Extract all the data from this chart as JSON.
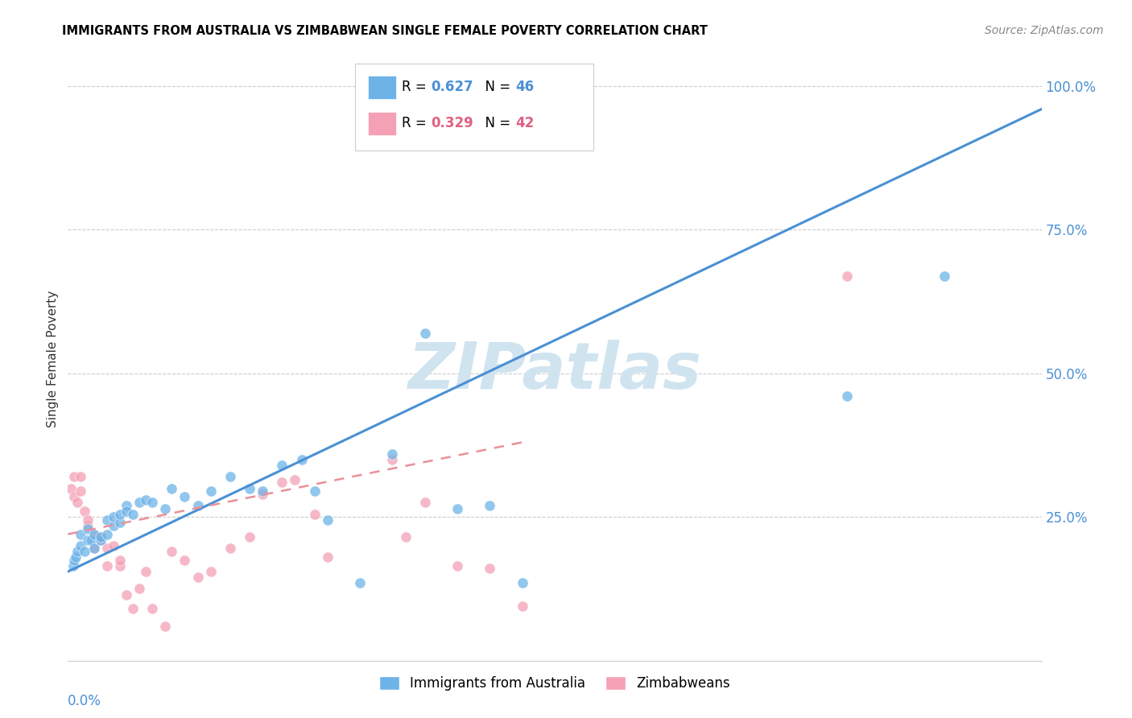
{
  "title": "IMMIGRANTS FROM AUSTRALIA VS ZIMBABWEAN SINGLE FEMALE POVERTY CORRELATION CHART",
  "source": "Source: ZipAtlas.com",
  "ylabel": "Single Female Poverty",
  "ytick_labels": [
    "100.0%",
    "75.0%",
    "50.0%",
    "25.0%"
  ],
  "ytick_vals": [
    1.0,
    0.75,
    0.5,
    0.25
  ],
  "legend_1_r": "0.627",
  "legend_1_n": "46",
  "legend_2_r": "0.329",
  "legend_2_n": "42",
  "blue_color": "#6db3e8",
  "pink_color": "#f4a0b5",
  "blue_line_color": "#4a90d4",
  "pink_line_color": "#e8909a",
  "watermark": "ZIPatlas",
  "watermark_color": "#d0e4f0",
  "title_fontsize": 10.5,
  "source_fontsize": 10,
  "tick_color": "#4a90d4",
  "ylabel_color": "#333333",
  "xmin": 0.0,
  "xmax": 0.15,
  "ymin": 0.0,
  "ymax": 1.05,
  "blue_x": [
    0.0008,
    0.001,
    0.0012,
    0.0015,
    0.002,
    0.002,
    0.0025,
    0.003,
    0.003,
    0.0035,
    0.004,
    0.004,
    0.005,
    0.005,
    0.006,
    0.006,
    0.007,
    0.007,
    0.008,
    0.008,
    0.009,
    0.009,
    0.01,
    0.011,
    0.012,
    0.013,
    0.015,
    0.016,
    0.018,
    0.02,
    0.022,
    0.025,
    0.028,
    0.03,
    0.033,
    0.036,
    0.038,
    0.04,
    0.045,
    0.05,
    0.055,
    0.06,
    0.065,
    0.07,
    0.12,
    0.135
  ],
  "blue_y": [
    0.165,
    0.175,
    0.18,
    0.19,
    0.2,
    0.22,
    0.19,
    0.21,
    0.23,
    0.21,
    0.195,
    0.22,
    0.21,
    0.215,
    0.22,
    0.245,
    0.235,
    0.25,
    0.24,
    0.255,
    0.27,
    0.26,
    0.255,
    0.275,
    0.28,
    0.275,
    0.265,
    0.3,
    0.285,
    0.27,
    0.295,
    0.32,
    0.3,
    0.295,
    0.34,
    0.35,
    0.295,
    0.245,
    0.135,
    0.36,
    0.57,
    0.265,
    0.27,
    0.135,
    0.46,
    0.67
  ],
  "pink_x": [
    0.0005,
    0.001,
    0.001,
    0.0015,
    0.002,
    0.002,
    0.0025,
    0.003,
    0.003,
    0.004,
    0.004,
    0.005,
    0.005,
    0.006,
    0.006,
    0.007,
    0.008,
    0.008,
    0.009,
    0.01,
    0.011,
    0.012,
    0.013,
    0.015,
    0.016,
    0.018,
    0.02,
    0.022,
    0.025,
    0.028,
    0.03,
    0.033,
    0.035,
    0.038,
    0.04,
    0.05,
    0.052,
    0.055,
    0.06,
    0.065,
    0.07,
    0.12
  ],
  "pink_y": [
    0.3,
    0.285,
    0.32,
    0.275,
    0.295,
    0.32,
    0.26,
    0.235,
    0.245,
    0.195,
    0.22,
    0.21,
    0.215,
    0.165,
    0.195,
    0.2,
    0.165,
    0.175,
    0.115,
    0.09,
    0.125,
    0.155,
    0.09,
    0.06,
    0.19,
    0.175,
    0.145,
    0.155,
    0.195,
    0.215,
    0.29,
    0.31,
    0.315,
    0.255,
    0.18,
    0.35,
    0.215,
    0.275,
    0.165,
    0.16,
    0.095,
    0.67
  ],
  "blue_line_x0": 0.0,
  "blue_line_y0": 0.155,
  "blue_line_x1": 0.15,
  "blue_line_y1": 0.96,
  "pink_line_x0": 0.0,
  "pink_line_y0": 0.22,
  "pink_line_x1": 0.07,
  "pink_line_y1": 0.38
}
